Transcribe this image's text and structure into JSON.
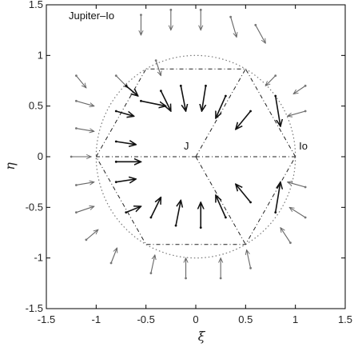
{
  "chart_data": {
    "type": "scatter",
    "title": "Jupiter–Io",
    "xlabel": "ξ",
    "ylabel": "η",
    "xlim": [
      -1.5,
      1.5
    ],
    "ylim": [
      -1.5,
      1.5
    ],
    "x_ticks": [
      "-1.5",
      "-1",
      "-0.5",
      "0",
      "0.5",
      "1",
      "1.5"
    ],
    "y_ticks": [
      "-1.5",
      "-1",
      "-0.5",
      "0",
      "0.5",
      "1",
      "1.5"
    ],
    "grid": false,
    "annotations": [
      {
        "text": "J",
        "x": -0.04,
        "y": 0.04
      },
      {
        "text": "Io",
        "x": 1.02,
        "y": 0.04
      }
    ],
    "reference_lines": {
      "circle_radius": 1.0,
      "hexagon_vertices": [
        [
          1.0,
          0.0
        ],
        [
          0.5,
          0.866
        ],
        [
          -0.5,
          0.866
        ],
        [
          -1.0,
          0.0
        ],
        [
          -0.5,
          -0.866
        ],
        [
          0.5,
          -0.866
        ]
      ]
    },
    "series": [
      {
        "style": "gray arrows (outer field)",
        "points": [
          [
            -0.55,
            1.4,
            0.0,
            -0.2
          ],
          [
            -0.25,
            1.45,
            0.0,
            -0.2
          ],
          [
            0.05,
            1.45,
            0.0,
            -0.2
          ],
          [
            0.35,
            1.38,
            0.06,
            -0.2
          ],
          [
            0.6,
            1.3,
            0.1,
            -0.18
          ],
          [
            -1.2,
            0.8,
            0.1,
            -0.12
          ],
          [
            -0.8,
            0.8,
            0.12,
            -0.12
          ],
          [
            -0.4,
            0.95,
            0.05,
            -0.15
          ],
          [
            0.8,
            0.8,
            -0.1,
            -0.1
          ],
          [
            1.1,
            0.7,
            -0.12,
            -0.08
          ],
          [
            -1.2,
            0.55,
            0.18,
            -0.05
          ],
          [
            -1.2,
            0.28,
            0.18,
            -0.03
          ],
          [
            -1.25,
            0.0,
            0.2,
            0.0
          ],
          [
            -1.2,
            -0.28,
            0.18,
            0.03
          ],
          [
            -1.2,
            -0.55,
            0.18,
            0.06
          ],
          [
            -1.1,
            -0.82,
            0.12,
            0.1
          ],
          [
            -0.85,
            -1.05,
            0.06,
            0.15
          ],
          [
            -0.45,
            -1.15,
            0.04,
            0.18
          ],
          [
            -0.1,
            -1.2,
            0.0,
            0.2
          ],
          [
            0.25,
            -1.2,
            0.0,
            0.2
          ],
          [
            0.55,
            -1.1,
            -0.04,
            0.18
          ],
          [
            1.1,
            0.45,
            -0.18,
            -0.05
          ],
          [
            1.1,
            -0.3,
            -0.18,
            0.05
          ],
          [
            1.1,
            -0.6,
            -0.16,
            0.1
          ],
          [
            0.95,
            -0.85,
            -0.1,
            0.15
          ]
        ]
      },
      {
        "style": "black arrows (inner field)",
        "points": [
          [
            -0.8,
            0.45,
            0.18,
            -0.05
          ],
          [
            -0.7,
            0.7,
            0.12,
            -0.1
          ],
          [
            -0.55,
            0.55,
            0.25,
            -0.05
          ],
          [
            -0.8,
            0.15,
            0.2,
            -0.03
          ],
          [
            -0.8,
            -0.05,
            0.25,
            0.0
          ],
          [
            -0.8,
            -0.25,
            0.2,
            0.03
          ],
          [
            -0.7,
            -0.55,
            0.15,
            0.06
          ],
          [
            -0.35,
            0.65,
            0.1,
            -0.2
          ],
          [
            -0.15,
            0.7,
            0.05,
            -0.25
          ],
          [
            0.1,
            0.7,
            -0.04,
            -0.25
          ],
          [
            0.3,
            0.6,
            -0.1,
            -0.22
          ],
          [
            0.55,
            0.45,
            -0.15,
            -0.18
          ],
          [
            0.55,
            -0.45,
            -0.15,
            0.18
          ],
          [
            0.3,
            -0.6,
            -0.1,
            0.22
          ],
          [
            0.05,
            -0.7,
            0.0,
            0.25
          ],
          [
            -0.2,
            -0.68,
            0.05,
            0.25
          ],
          [
            -0.45,
            -0.6,
            0.1,
            0.2
          ],
          [
            0.8,
            0.6,
            0.05,
            -0.3
          ],
          [
            0.8,
            -0.55,
            0.05,
            0.3
          ]
        ]
      }
    ]
  }
}
